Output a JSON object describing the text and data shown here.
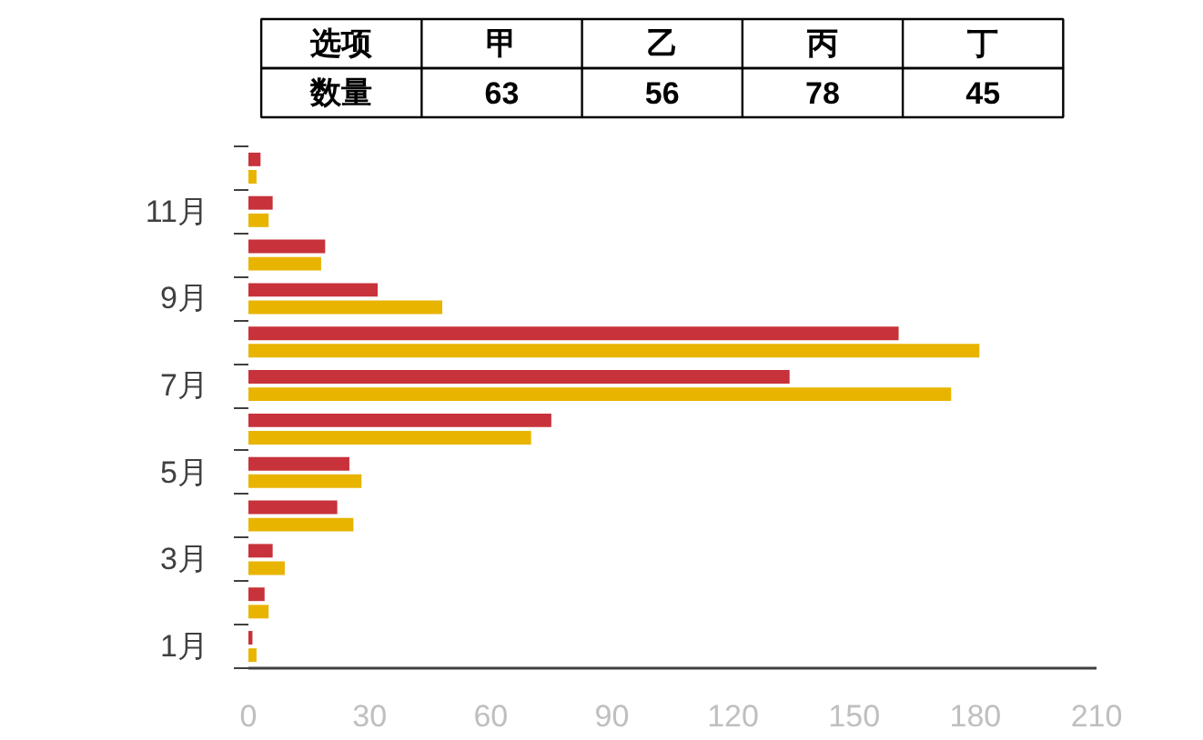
{
  "chart_data": [
    {
      "type": "other",
      "xlabel": "选项",
      "ylabel": "数量",
      "categories": [
        "甲",
        "乙",
        "丙",
        "丁"
      ],
      "values": [
        63,
        56,
        78,
        45
      ],
      "data_labels": true
    },
    {
      "type": "bar",
      "orientation": "horizontal",
      "categories": [
        null,
        "11月",
        null,
        "9月",
        null,
        "7月",
        null,
        "5月",
        null,
        "3月",
        null,
        "1月"
      ],
      "series": [
        {
          "color": "#c8323a",
          "values": [
            3,
            6,
            19,
            32,
            161,
            134,
            75,
            25,
            22,
            6,
            4,
            1
          ]
        },
        {
          "color": "#e8b400",
          "values": [
            2,
            5,
            18,
            48,
            181,
            174,
            70,
            28,
            26,
            9,
            5,
            2
          ]
        }
      ],
      "xlim": [
        0,
        210
      ],
      "xticks": [
        0,
        30,
        60,
        90,
        120,
        150,
        180,
        210
      ]
    }
  ]
}
